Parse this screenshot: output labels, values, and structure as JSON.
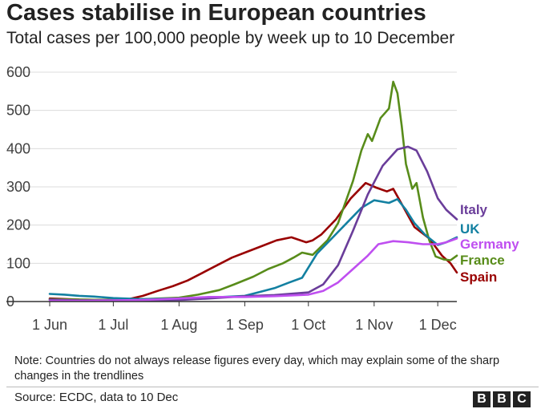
{
  "title": "Cases stabilise in European countries",
  "subtitle": "Total cases per 100,000 people by week up to 10 December",
  "note": "Note: Countries do not always release figures every day, which may explain some of the sharp changes in the trendlines",
  "source": "Source: ECDC, data to 10 Dec",
  "logo": [
    "B",
    "B",
    "C"
  ],
  "chart_data": {
    "type": "line",
    "title": "Cases stabilise in European countries",
    "subtitle": "Total cases per 100,000 people by week up to 10 December",
    "xlabel": "",
    "ylabel": "",
    "xlim": [
      "2020-06-01",
      "2020-12-10"
    ],
    "ylim": [
      0,
      600
    ],
    "y_ticks": [
      0,
      100,
      200,
      300,
      400,
      500,
      600
    ],
    "x_ticks": [
      {
        "date": "2020-06-01",
        "label": "1 Jun"
      },
      {
        "date": "2020-07-01",
        "label": "1 Jul"
      },
      {
        "date": "2020-08-01",
        "label": "1 Aug"
      },
      {
        "date": "2020-09-01",
        "label": "1 Sep"
      },
      {
        "date": "2020-10-01",
        "label": "1 Oct"
      },
      {
        "date": "2020-11-01",
        "label": "1 Nov"
      },
      {
        "date": "2020-12-01",
        "label": "1 Dec"
      }
    ],
    "grid": "horizontal",
    "legend": "direct labels at right end of lines",
    "series": [
      {
        "name": "Spain",
        "color": "#990000",
        "points": [
          [
            "2020-06-01",
            8
          ],
          [
            "2020-06-15",
            5
          ],
          [
            "2020-07-01",
            4
          ],
          [
            "2020-07-08",
            6
          ],
          [
            "2020-07-15",
            15
          ],
          [
            "2020-07-22",
            28
          ],
          [
            "2020-07-29",
            40
          ],
          [
            "2020-08-05",
            55
          ],
          [
            "2020-08-12",
            75
          ],
          [
            "2020-08-19",
            95
          ],
          [
            "2020-08-26",
            115
          ],
          [
            "2020-09-02",
            130
          ],
          [
            "2020-09-09",
            145
          ],
          [
            "2020-09-16",
            160
          ],
          [
            "2020-09-23",
            168
          ],
          [
            "2020-09-30",
            155
          ],
          [
            "2020-10-03",
            160
          ],
          [
            "2020-10-07",
            175
          ],
          [
            "2020-10-14",
            215
          ],
          [
            "2020-10-21",
            270
          ],
          [
            "2020-10-28",
            310
          ],
          [
            "2020-11-02",
            298
          ],
          [
            "2020-11-07",
            288
          ],
          [
            "2020-11-10",
            295
          ],
          [
            "2020-11-14",
            255
          ],
          [
            "2020-11-20",
            195
          ],
          [
            "2020-11-27",
            165
          ],
          [
            "2020-12-03",
            120
          ],
          [
            "2020-12-07",
            100
          ],
          [
            "2020-12-10",
            76
          ]
        ]
      },
      {
        "name": "France",
        "color": "#588c1a",
        "points": [
          [
            "2020-06-01",
            6
          ],
          [
            "2020-06-15",
            5
          ],
          [
            "2020-07-01",
            4
          ],
          [
            "2020-07-15",
            6
          ],
          [
            "2020-08-01",
            10
          ],
          [
            "2020-08-10",
            18
          ],
          [
            "2020-08-20",
            30
          ],
          [
            "2020-08-27",
            45
          ],
          [
            "2020-09-05",
            65
          ],
          [
            "2020-09-12",
            85
          ],
          [
            "2020-09-19",
            100
          ],
          [
            "2020-09-24",
            115
          ],
          [
            "2020-09-28",
            128
          ],
          [
            "2020-10-03",
            122
          ],
          [
            "2020-10-10",
            160
          ],
          [
            "2020-10-15",
            205
          ],
          [
            "2020-10-22",
            315
          ],
          [
            "2020-10-26",
            395
          ],
          [
            "2020-10-29",
            438
          ],
          [
            "2020-10-31",
            420
          ],
          [
            "2020-11-04",
            480
          ],
          [
            "2020-11-08",
            505
          ],
          [
            "2020-11-10",
            575
          ],
          [
            "2020-11-12",
            545
          ],
          [
            "2020-11-14",
            460
          ],
          [
            "2020-11-16",
            360
          ],
          [
            "2020-11-19",
            295
          ],
          [
            "2020-11-21",
            310
          ],
          [
            "2020-11-24",
            220
          ],
          [
            "2020-11-27",
            160
          ],
          [
            "2020-11-30",
            118
          ],
          [
            "2020-12-04",
            110
          ],
          [
            "2020-12-07",
            108
          ],
          [
            "2020-12-10",
            120
          ]
        ]
      },
      {
        "name": "UK",
        "color": "#1380a1",
        "points": [
          [
            "2020-06-01",
            20
          ],
          [
            "2020-06-08",
            18
          ],
          [
            "2020-06-15",
            15
          ],
          [
            "2020-06-22",
            13
          ],
          [
            "2020-07-01",
            9
          ],
          [
            "2020-07-15",
            6
          ],
          [
            "2020-08-01",
            8
          ],
          [
            "2020-08-15",
            10
          ],
          [
            "2020-09-01",
            15
          ],
          [
            "2020-09-08",
            25
          ],
          [
            "2020-09-15",
            35
          ],
          [
            "2020-09-22",
            50
          ],
          [
            "2020-09-28",
            62
          ],
          [
            "2020-10-05",
            125
          ],
          [
            "2020-10-12",
            165
          ],
          [
            "2020-10-19",
            205
          ],
          [
            "2020-10-26",
            245
          ],
          [
            "2020-11-01",
            265
          ],
          [
            "2020-11-08",
            258
          ],
          [
            "2020-11-12",
            268
          ],
          [
            "2020-11-16",
            240
          ],
          [
            "2020-11-20",
            205
          ],
          [
            "2020-11-25",
            175
          ],
          [
            "2020-12-01",
            148
          ],
          [
            "2020-12-05",
            155
          ],
          [
            "2020-12-10",
            168
          ]
        ]
      },
      {
        "name": "Italy",
        "color": "#6a3d9a",
        "points": [
          [
            "2020-06-01",
            5
          ],
          [
            "2020-06-15",
            3
          ],
          [
            "2020-07-01",
            3
          ],
          [
            "2020-07-15",
            3
          ],
          [
            "2020-08-01",
            4
          ],
          [
            "2020-08-15",
            8
          ],
          [
            "2020-09-01",
            14
          ],
          [
            "2020-09-15",
            17
          ],
          [
            "2020-10-01",
            24
          ],
          [
            "2020-10-08",
            45
          ],
          [
            "2020-10-15",
            95
          ],
          [
            "2020-10-22",
            185
          ],
          [
            "2020-10-29",
            280
          ],
          [
            "2020-11-05",
            355
          ],
          [
            "2020-11-12",
            398
          ],
          [
            "2020-11-17",
            405
          ],
          [
            "2020-11-21",
            395
          ],
          [
            "2020-11-26",
            340
          ],
          [
            "2020-12-01",
            270
          ],
          [
            "2020-12-05",
            240
          ],
          [
            "2020-12-10",
            215
          ]
        ]
      },
      {
        "name": "Germany",
        "color": "#bf4ff0",
        "points": [
          [
            "2020-06-01",
            2
          ],
          [
            "2020-06-15",
            2
          ],
          [
            "2020-07-01",
            3
          ],
          [
            "2020-07-15",
            4
          ],
          [
            "2020-08-01",
            8
          ],
          [
            "2020-08-15",
            12
          ],
          [
            "2020-09-01",
            12
          ],
          [
            "2020-09-15",
            14
          ],
          [
            "2020-10-01",
            18
          ],
          [
            "2020-10-08",
            28
          ],
          [
            "2020-10-15",
            50
          ],
          [
            "2020-10-22",
            85
          ],
          [
            "2020-10-29",
            120
          ],
          [
            "2020-11-03",
            150
          ],
          [
            "2020-11-10",
            158
          ],
          [
            "2020-11-17",
            155
          ],
          [
            "2020-11-24",
            150
          ],
          [
            "2020-12-01",
            150
          ],
          [
            "2020-12-05",
            155
          ],
          [
            "2020-12-10",
            165
          ]
        ]
      }
    ],
    "labels": [
      {
        "name": "Italy",
        "text": "Italy",
        "color": "#6a3d9a"
      },
      {
        "name": "UK",
        "text": "UK",
        "color": "#1380a1"
      },
      {
        "name": "Germany",
        "text": "Germany",
        "color": "#bf4ff0"
      },
      {
        "name": "France",
        "text": "France",
        "color": "#588c1a"
      },
      {
        "name": "Spain",
        "text": "Spain",
        "color": "#990000"
      }
    ]
  }
}
